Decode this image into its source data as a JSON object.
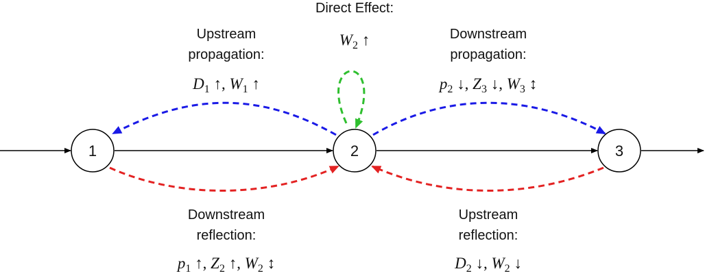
{
  "direct_effect": {
    "title": "Direct Effect:",
    "formula": [
      {
        "text": "W",
        "style": "var"
      },
      {
        "text": "2",
        "style": "sub"
      },
      {
        "text": " ↑",
        "style": "op"
      }
    ]
  },
  "nodes": [
    {
      "label": "1"
    },
    {
      "label": "2"
    },
    {
      "label": "3"
    }
  ],
  "labels": [
    {
      "lines": [
        "Upstream",
        "propagation:"
      ],
      "formula": [
        {
          "text": "D",
          "style": "var"
        },
        {
          "text": "1",
          "style": "sub"
        },
        {
          "text": " ↑, ",
          "style": "op"
        },
        {
          "text": "W",
          "style": "var"
        },
        {
          "text": "1",
          "style": "sub"
        },
        {
          "text": " ↑",
          "style": "op"
        }
      ]
    },
    {
      "lines": [
        "Downstream",
        "propagation:"
      ],
      "formula": [
        {
          "text": "p",
          "style": "var"
        },
        {
          "text": "2",
          "style": "sub"
        },
        {
          "text": " ↓, ",
          "style": "op"
        },
        {
          "text": "Z",
          "style": "var"
        },
        {
          "text": "3",
          "style": "sub"
        },
        {
          "text": " ↓, ",
          "style": "op"
        },
        {
          "text": "W",
          "style": "var"
        },
        {
          "text": "3",
          "style": "sub"
        },
        {
          "text": " ↕",
          "style": "op"
        }
      ]
    },
    {
      "lines": [
        "Downstream",
        "reflection:"
      ],
      "formula": [
        {
          "text": "p",
          "style": "var"
        },
        {
          "text": "1",
          "style": "sub"
        },
        {
          "text": " ↑, ",
          "style": "op"
        },
        {
          "text": "Z",
          "style": "var"
        },
        {
          "text": "2",
          "style": "sub"
        },
        {
          "text": " ↑, ",
          "style": "op"
        },
        {
          "text": "W",
          "style": "var"
        },
        {
          "text": "2",
          "style": "sub"
        },
        {
          "text": " ↕",
          "style": "op"
        }
      ]
    },
    {
      "lines": [
        "Upstream",
        "reflection:"
      ],
      "formula": [
        {
          "text": "D",
          "style": "var"
        },
        {
          "text": "2",
          "style": "sub"
        },
        {
          "text": " ↓, ",
          "style": "op"
        },
        {
          "text": "W",
          "style": "var"
        },
        {
          "text": "2",
          "style": "sub"
        },
        {
          "text": " ↓",
          "style": "op"
        }
      ]
    }
  ]
}
